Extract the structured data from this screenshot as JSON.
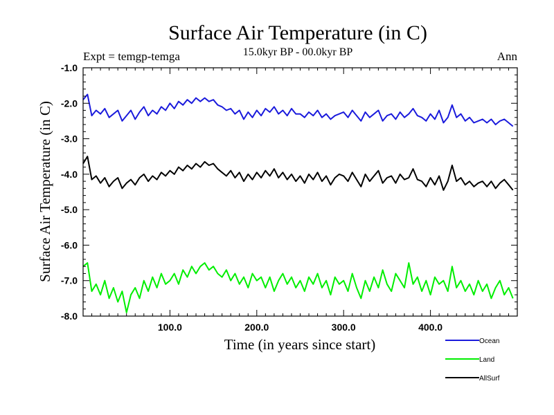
{
  "chart_data": {
    "type": "line",
    "title": "Surface Air Temperature (in C)",
    "subtitle": "15.0kyr BP - 00.0kyr BP",
    "annotation_left": "Expt = temgp-temga",
    "annotation_right": "Ann",
    "xlabel": "Time (in years since start)",
    "ylabel": "Surface Air Temperature (in C)",
    "xlim": [
      0,
      500
    ],
    "ylim": [
      -8.0,
      -1.0
    ],
    "xticks": [
      100,
      200,
      300,
      400
    ],
    "xtick_labels": [
      "100.0",
      "200.0",
      "300.0",
      "400.0"
    ],
    "yticks": [
      -1,
      -2,
      -3,
      -4,
      -5,
      -6,
      -7,
      -8
    ],
    "ytick_labels": [
      "-1.0",
      "-2.0",
      "-3.0",
      "-4.0",
      "-5.0",
      "-6.0",
      "-7.0",
      "-8.0"
    ],
    "legend_position": "bottom-right",
    "series": [
      {
        "name": "Ocean",
        "color": "#1a1adc",
        "x": [
          0,
          5,
          10,
          15,
          20,
          25,
          30,
          35,
          40,
          45,
          50,
          55,
          60,
          65,
          70,
          75,
          80,
          85,
          90,
          95,
          100,
          105,
          110,
          115,
          120,
          125,
          130,
          135,
          140,
          145,
          150,
          155,
          160,
          165,
          170,
          175,
          180,
          185,
          190,
          195,
          200,
          205,
          210,
          215,
          220,
          225,
          230,
          235,
          240,
          245,
          250,
          255,
          260,
          265,
          270,
          275,
          280,
          285,
          290,
          295,
          300,
          305,
          310,
          315,
          320,
          325,
          330,
          335,
          340,
          345,
          350,
          355,
          360,
          365,
          370,
          375,
          380,
          385,
          390,
          395,
          400,
          405,
          410,
          415,
          420,
          425,
          430,
          435,
          440,
          445,
          450,
          455,
          460,
          465,
          470,
          475,
          480,
          485,
          490,
          495
        ],
        "values": [
          -1.9,
          -1.75,
          -2.35,
          -2.2,
          -2.3,
          -2.15,
          -2.4,
          -2.3,
          -2.2,
          -2.5,
          -2.35,
          -2.2,
          -2.45,
          -2.25,
          -2.1,
          -2.35,
          -2.2,
          -2.3,
          -2.1,
          -2.2,
          -2.0,
          -2.15,
          -1.95,
          -2.05,
          -1.9,
          -2.0,
          -1.85,
          -1.95,
          -1.85,
          -1.95,
          -1.9,
          -2.05,
          -2.1,
          -2.2,
          -2.15,
          -2.3,
          -2.2,
          -2.45,
          -2.25,
          -2.4,
          -2.2,
          -2.35,
          -2.15,
          -2.25,
          -2.1,
          -2.3,
          -2.2,
          -2.35,
          -2.15,
          -2.3,
          -2.3,
          -2.4,
          -2.25,
          -2.35,
          -2.2,
          -2.4,
          -2.3,
          -2.45,
          -2.35,
          -2.3,
          -2.25,
          -2.4,
          -2.2,
          -2.35,
          -2.5,
          -2.25,
          -2.4,
          -2.3,
          -2.2,
          -2.5,
          -2.35,
          -2.3,
          -2.45,
          -2.25,
          -2.4,
          -2.3,
          -2.15,
          -2.35,
          -2.4,
          -2.5,
          -2.3,
          -2.45,
          -2.2,
          -2.55,
          -2.4,
          -2.05,
          -2.4,
          -2.3,
          -2.5,
          -2.4,
          -2.55,
          -2.5,
          -2.45,
          -2.55,
          -2.45,
          -2.6,
          -2.5,
          -2.45,
          -2.55,
          -2.65
        ]
      },
      {
        "name": "Land",
        "color": "#00ee00",
        "x": [
          0,
          5,
          10,
          15,
          20,
          25,
          30,
          35,
          40,
          45,
          50,
          55,
          60,
          65,
          70,
          75,
          80,
          85,
          90,
          95,
          100,
          105,
          110,
          115,
          120,
          125,
          130,
          135,
          140,
          145,
          150,
          155,
          160,
          165,
          170,
          175,
          180,
          185,
          190,
          195,
          200,
          205,
          210,
          215,
          220,
          225,
          230,
          235,
          240,
          245,
          250,
          255,
          260,
          265,
          270,
          275,
          280,
          285,
          290,
          295,
          300,
          305,
          310,
          315,
          320,
          325,
          330,
          335,
          340,
          345,
          350,
          355,
          360,
          365,
          370,
          375,
          380,
          385,
          390,
          395,
          400,
          405,
          410,
          415,
          420,
          425,
          430,
          435,
          440,
          445,
          450,
          455,
          460,
          465,
          470,
          475,
          480,
          485,
          490,
          495
        ],
        "values": [
          -6.6,
          -6.5,
          -7.3,
          -7.1,
          -7.4,
          -7.0,
          -7.5,
          -7.2,
          -7.6,
          -7.3,
          -7.9,
          -7.4,
          -7.2,
          -7.5,
          -7.0,
          -7.3,
          -6.9,
          -7.2,
          -6.8,
          -7.1,
          -7.0,
          -6.8,
          -7.1,
          -6.7,
          -6.9,
          -6.6,
          -6.8,
          -6.6,
          -6.5,
          -6.7,
          -6.6,
          -6.8,
          -6.9,
          -6.7,
          -7.0,
          -6.8,
          -7.1,
          -6.9,
          -7.2,
          -6.8,
          -7.0,
          -6.9,
          -7.2,
          -6.9,
          -7.3,
          -7.0,
          -6.8,
          -7.1,
          -6.9,
          -7.2,
          -7.0,
          -7.3,
          -6.9,
          -7.1,
          -6.8,
          -7.2,
          -7.0,
          -7.4,
          -6.9,
          -7.1,
          -7.0,
          -7.3,
          -6.8,
          -7.2,
          -7.5,
          -7.0,
          -7.3,
          -6.9,
          -7.2,
          -6.7,
          -7.1,
          -7.3,
          -6.8,
          -7.0,
          -7.2,
          -6.5,
          -7.1,
          -6.9,
          -7.3,
          -7.0,
          -7.4,
          -6.9,
          -7.1,
          -7.0,
          -7.3,
          -6.6,
          -7.2,
          -7.0,
          -7.3,
          -7.1,
          -7.4,
          -7.0,
          -7.3,
          -7.1,
          -7.5,
          -7.2,
          -7.0,
          -7.4,
          -7.2,
          -7.5
        ]
      },
      {
        "name": "AllSurf",
        "color": "#000000",
        "x": [
          0,
          5,
          10,
          15,
          20,
          25,
          30,
          35,
          40,
          45,
          50,
          55,
          60,
          65,
          70,
          75,
          80,
          85,
          90,
          95,
          100,
          105,
          110,
          115,
          120,
          125,
          130,
          135,
          140,
          145,
          150,
          155,
          160,
          165,
          170,
          175,
          180,
          185,
          190,
          195,
          200,
          205,
          210,
          215,
          220,
          225,
          230,
          235,
          240,
          245,
          250,
          255,
          260,
          265,
          270,
          275,
          280,
          285,
          290,
          295,
          300,
          305,
          310,
          315,
          320,
          325,
          330,
          335,
          340,
          345,
          350,
          355,
          360,
          365,
          370,
          375,
          380,
          385,
          390,
          395,
          400,
          405,
          410,
          415,
          420,
          425,
          430,
          435,
          440,
          445,
          450,
          455,
          460,
          465,
          470,
          475,
          480,
          485,
          490,
          495
        ],
        "values": [
          -3.7,
          -3.5,
          -4.15,
          -4.05,
          -4.25,
          -4.1,
          -4.35,
          -4.2,
          -4.1,
          -4.4,
          -4.25,
          -4.15,
          -4.3,
          -4.1,
          -4.0,
          -4.2,
          -4.05,
          -4.15,
          -3.95,
          -4.05,
          -3.9,
          -4.0,
          -3.8,
          -3.9,
          -3.75,
          -3.85,
          -3.7,
          -3.8,
          -3.65,
          -3.75,
          -3.7,
          -3.85,
          -3.95,
          -4.05,
          -3.9,
          -4.1,
          -3.95,
          -4.2,
          -4.0,
          -4.15,
          -3.95,
          -4.1,
          -3.9,
          -4.05,
          -3.85,
          -4.1,
          -3.95,
          -4.15,
          -4.0,
          -4.2,
          -4.05,
          -4.25,
          -4.0,
          -4.15,
          -3.95,
          -4.2,
          -4.05,
          -4.3,
          -4.1,
          -4.0,
          -4.05,
          -4.2,
          -3.95,
          -4.15,
          -4.35,
          -4.0,
          -4.2,
          -4.05,
          -3.9,
          -4.25,
          -4.1,
          -4.05,
          -4.25,
          -4.0,
          -4.15,
          -4.1,
          -3.85,
          -4.15,
          -4.2,
          -4.35,
          -4.1,
          -4.3,
          -4.05,
          -4.45,
          -4.2,
          -3.75,
          -4.2,
          -4.1,
          -4.3,
          -4.2,
          -4.35,
          -4.25,
          -4.2,
          -4.35,
          -4.2,
          -4.4,
          -4.25,
          -4.15,
          -4.3,
          -4.45
        ]
      }
    ]
  }
}
